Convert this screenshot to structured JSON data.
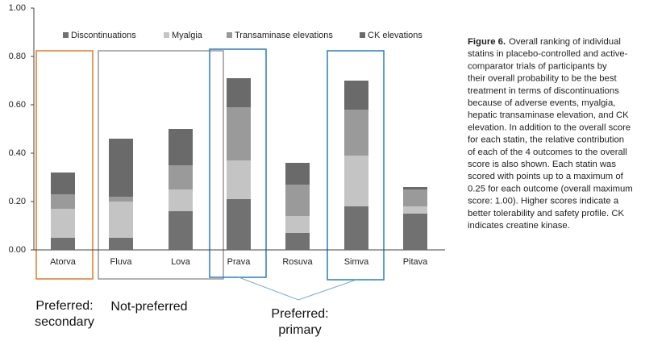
{
  "chart_data": {
    "type": "stacked_bar",
    "categories": [
      "Atorva",
      "Fluva",
      "Lova",
      "Prava",
      "Rosuva",
      "Simva",
      "Pitava"
    ],
    "series": [
      {
        "name": "Discontinuations",
        "color": "#717171",
        "values": [
          0.05,
          0.05,
          0.16,
          0.21,
          0.07,
          0.18,
          0.15
        ]
      },
      {
        "name": "Myalgia",
        "color": "#c4c4c4",
        "values": [
          0.12,
          0.15,
          0.09,
          0.16,
          0.07,
          0.21,
          0.03
        ]
      },
      {
        "name": "Transaminase elevations",
        "color": "#9a9a9a",
        "values": [
          0.06,
          0.02,
          0.1,
          0.22,
          0.13,
          0.19,
          0.07
        ]
      },
      {
        "name": "CK elevations",
        "color": "#6a6a6a",
        "values": [
          0.09,
          0.24,
          0.15,
          0.12,
          0.09,
          0.12,
          0.01
        ]
      }
    ],
    "ylim": [
      0,
      1
    ],
    "yticks": [
      {
        "value": 0,
        "label": "0.00"
      },
      {
        "value": 0.2,
        "label": "0.20"
      },
      {
        "value": 0.4,
        "label": "0.40"
      },
      {
        "value": 0.6,
        "label": "0.60"
      },
      {
        "value": 0.8,
        "label": "0.80"
      },
      {
        "value": 1,
        "label": "1.00"
      }
    ],
    "annotations": [
      {
        "lines": [
          "Preferred:",
          "secondary"
        ]
      },
      {
        "lines": [
          "Not-preferred"
        ]
      },
      {
        "lines": [
          "Preferred:",
          "primary"
        ]
      }
    ],
    "caption": {
      "label": "Figure 6.",
      "lines": [
        "Overall ranking of individual",
        "statins in placebo-controlled and active-",
        "comparator trials of participants by",
        "their overall probability to be the best",
        "treatment in terms of discontinuations",
        "because of adverse events, myalgia,",
        "hepatic transaminase elevation, and CK",
        "elevation. In addition to the overall score",
        "for each statin, the relative contribution",
        "of each of the 4 outcomes to the overall",
        "score is also shown. Each statin was",
        "scored with points up to a maximum of",
        "0.25 for each outcome (overall maximum",
        "score: 1.00). Higher scores indicate a",
        "better tolerability and safety profile. CK",
        "indicates creatine kinase."
      ]
    }
  }
}
